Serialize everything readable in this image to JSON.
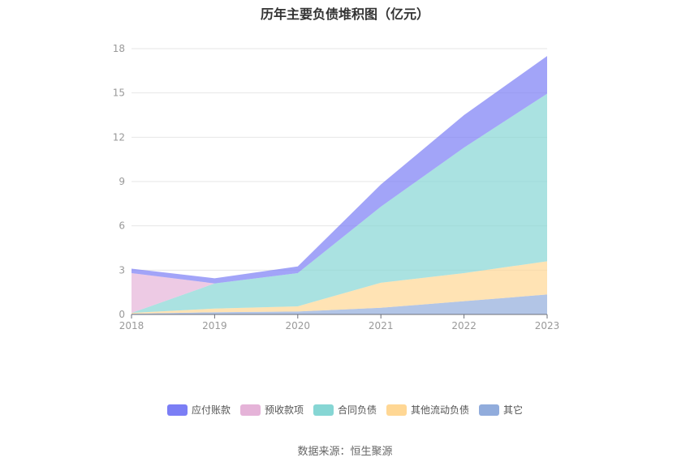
{
  "chart_data": {
    "type": "area",
    "stacked": true,
    "title": "历年主要负债堆积图（亿元）",
    "categories": [
      "2018",
      "2019",
      "2020",
      "2021",
      "2022",
      "2023"
    ],
    "ylim": [
      0,
      18
    ],
    "yticks": [
      "0",
      "3",
      "6",
      "9",
      "12",
      "15",
      "18"
    ],
    "grid": true,
    "legend_position": "bottom",
    "series": [
      {
        "name": "其它",
        "color": "#91acdc",
        "values": [
          0.05,
          0.15,
          0.2,
          0.45,
          0.9,
          1.35
        ]
      },
      {
        "name": "其他流动负债",
        "color": "#ffd794",
        "values": [
          0.05,
          0.25,
          0.35,
          1.7,
          1.9,
          2.25
        ]
      },
      {
        "name": "合同负债",
        "color": "#86d6d4",
        "values": [
          0.0,
          1.7,
          2.25,
          5.15,
          8.5,
          11.35
        ]
      },
      {
        "name": "预收款项",
        "color": "#e5b3d8",
        "values": [
          2.7,
          0.0,
          0.0,
          0.0,
          0.0,
          0.0
        ]
      },
      {
        "name": "应付账款",
        "color": "#7b7ef5",
        "values": [
          0.3,
          0.35,
          0.45,
          1.5,
          2.2,
          2.55
        ]
      }
    ],
    "legend_order": [
      "应付账款",
      "预收款项",
      "合同负债",
      "其他流动负债",
      "其它"
    ]
  },
  "source": "数据来源：恒生聚源"
}
